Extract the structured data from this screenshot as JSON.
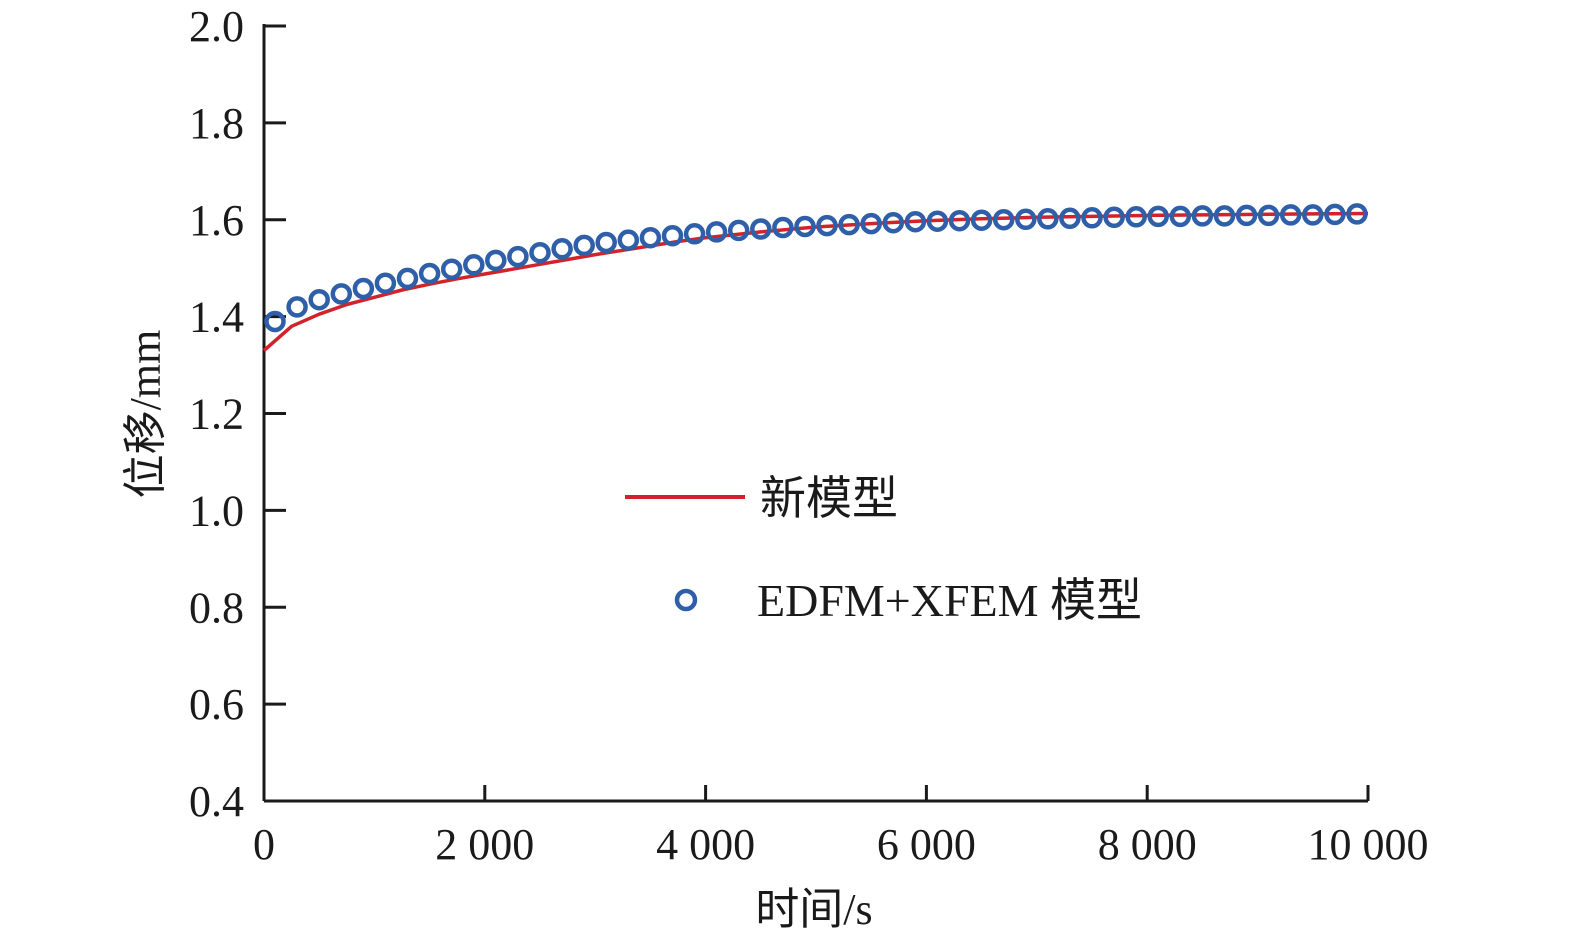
{
  "chart_data": {
    "type": "line",
    "xlabel": "时间/s",
    "ylabel": "位移/mm",
    "xlim": [
      0,
      10000
    ],
    "ylim": [
      0.4,
      2.0
    ],
    "x_ticks": [
      0,
      2000,
      4000,
      6000,
      8000,
      10000
    ],
    "x_tick_labels": [
      "0",
      "2 000",
      "4 000",
      "6 000",
      "8 000",
      "10 000"
    ],
    "y_ticks": [
      0.4,
      0.6,
      0.8,
      1.0,
      1.2,
      1.4,
      1.6,
      1.8,
      2.0
    ],
    "y_tick_labels": [
      "0.4",
      "0.6",
      "0.8",
      "1.0",
      "1.2",
      "1.4",
      "1.6",
      "1.8",
      "2.0"
    ],
    "grid": false,
    "legend_position": "center",
    "series": [
      {
        "name": "新模型",
        "style": "line",
        "color": "#d2232a",
        "x": [
          0,
          250,
          500,
          750,
          1000,
          1250,
          1500,
          1750,
          2000,
          2250,
          2500,
          2750,
          3000,
          3250,
          3500,
          3750,
          4000,
          4500,
          5000,
          5500,
          6000,
          6500,
          7000,
          7500,
          8000,
          8500,
          9000,
          9500,
          10000
        ],
        "y": [
          1.33,
          1.38,
          1.405,
          1.425,
          1.44,
          1.455,
          1.467,
          1.478,
          1.488,
          1.498,
          1.508,
          1.518,
          1.528,
          1.537,
          1.546,
          1.555,
          1.563,
          1.575,
          1.585,
          1.592,
          1.598,
          1.602,
          1.605,
          1.607,
          1.609,
          1.61,
          1.611,
          1.612,
          1.613
        ]
      },
      {
        "name": "EDFM+XFEM 模型",
        "style": "marker",
        "color": "#2e5fa8",
        "x": [
          100,
          300,
          500,
          700,
          900,
          1100,
          1300,
          1500,
          1700,
          1900,
          2100,
          2300,
          2500,
          2700,
          2900,
          3100,
          3300,
          3500,
          3700,
          3900,
          4100,
          4300,
          4500,
          4700,
          4900,
          5100,
          5300,
          5500,
          5700,
          5900,
          6100,
          6300,
          6500,
          6700,
          6900,
          7100,
          7300,
          7500,
          7700,
          7900,
          8100,
          8300,
          8500,
          8700,
          8900,
          9100,
          9300,
          9500,
          9700,
          9900
        ],
        "y": [
          1.39,
          1.42,
          1.435,
          1.447,
          1.458,
          1.469,
          1.479,
          1.489,
          1.498,
          1.507,
          1.516,
          1.524,
          1.532,
          1.54,
          1.547,
          1.553,
          1.558,
          1.563,
          1.567,
          1.571,
          1.575,
          1.578,
          1.581,
          1.584,
          1.586,
          1.588,
          1.59,
          1.592,
          1.594,
          1.596,
          1.597,
          1.598,
          1.599,
          1.6,
          1.601,
          1.602,
          1.603,
          1.604,
          1.605,
          1.606,
          1.607,
          1.607,
          1.608,
          1.608,
          1.609,
          1.609,
          1.61,
          1.61,
          1.611,
          1.612
        ]
      }
    ]
  }
}
